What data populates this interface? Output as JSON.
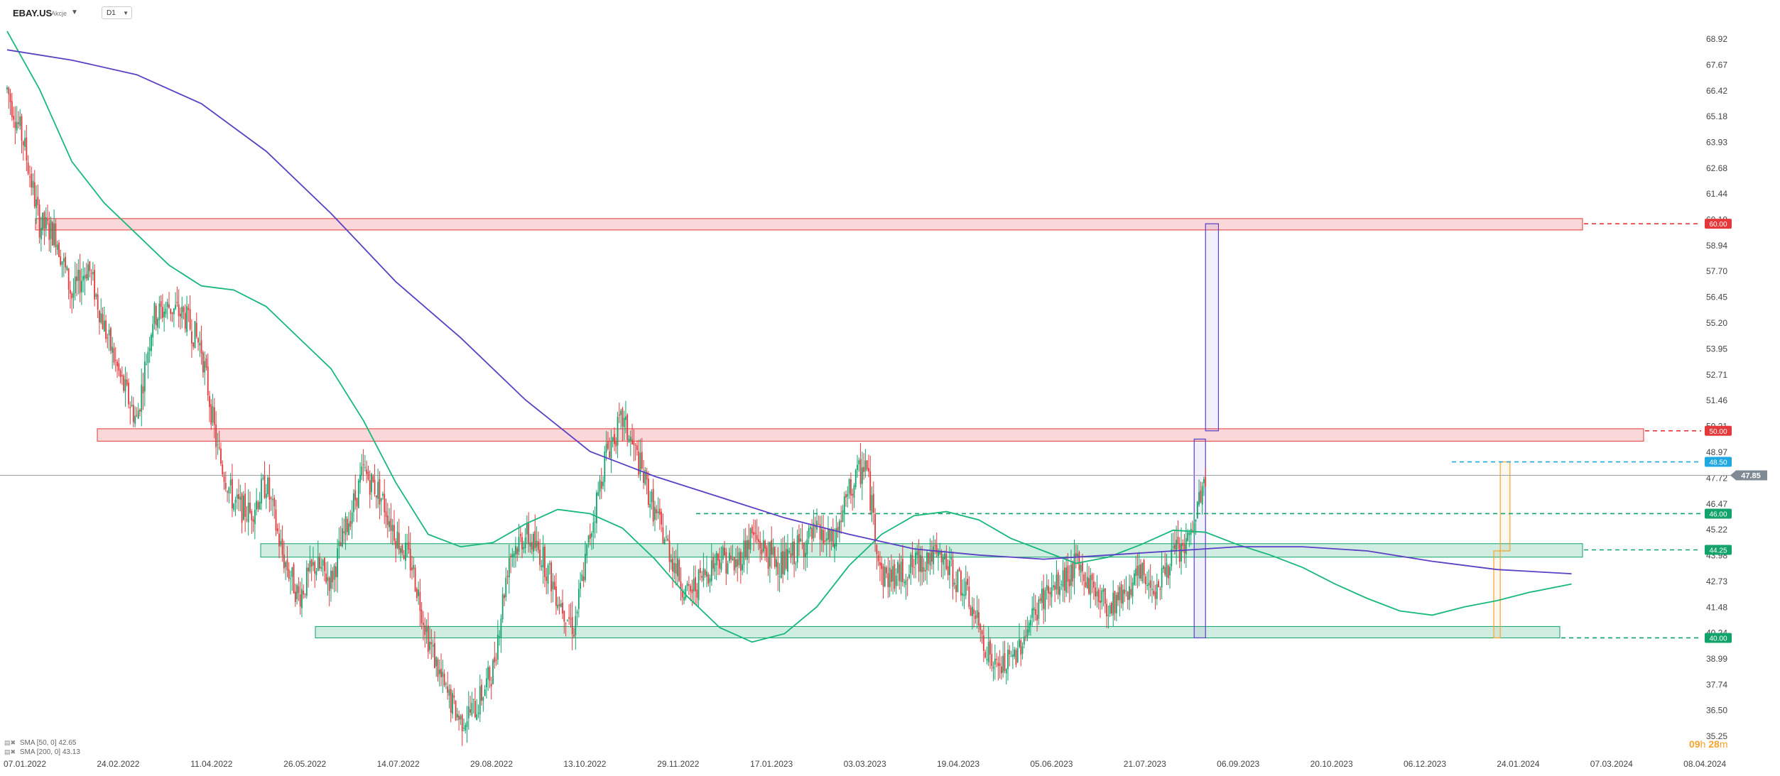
{
  "header": {
    "symbol": "EBAY.US",
    "instrument_type": "Akcje",
    "timeframe": "D1",
    "dropdown_icon": "caret-down-icon"
  },
  "countdown": {
    "hours": "09",
    "hours_unit": "h",
    "minutes": "28",
    "minutes_unit": "m"
  },
  "legend": [
    {
      "label": "SMA [50, 0]",
      "value": "42.65",
      "color": "#18b87a"
    },
    {
      "label": "SMA [200, 0]",
      "value": "43.13",
      "color": "#5b3fc4"
    }
  ],
  "chart_data": {
    "type": "candlestick",
    "instrument": "EBAY.US",
    "timeframe": "D1",
    "y_ticks": [
      "68.92",
      "67.67",
      "66.42",
      "65.18",
      "63.93",
      "62.68",
      "61.44",
      "60.19",
      "58.94",
      "57.70",
      "56.45",
      "55.20",
      "53.95",
      "52.71",
      "51.46",
      "50.21",
      "48.97",
      "47.72",
      "46.47",
      "45.22",
      "43.98",
      "42.73",
      "41.48",
      "40.24",
      "38.99",
      "37.74",
      "36.50",
      "35.25"
    ],
    "x_ticks": [
      "07.01.2022",
      "24.02.2022",
      "11.04.2022",
      "26.05.2022",
      "14.07.2022",
      "29.08.2022",
      "13.10.2022",
      "29.11.2022",
      "17.01.2023",
      "03.03.2023",
      "19.04.2023",
      "05.06.2023",
      "21.07.2023",
      "06.09.2023",
      "20.10.2023",
      "06.12.2023",
      "24.01.2024",
      "07.03.2024",
      "08.04.2024"
    ],
    "ylim": [
      35.25,
      68.92
    ],
    "last_price": {
      "value": 47.85,
      "label": "47.85",
      "color": "#808a94"
    },
    "levels": [
      {
        "label": "60.00",
        "value": 60.0,
        "color": "#e5383b",
        "style": "dashed"
      },
      {
        "label": "50.00",
        "value": 50.0,
        "color": "#e5383b",
        "style": "dashed"
      },
      {
        "label": "48.50",
        "value": 48.5,
        "color": "#1fa8e0",
        "style": "dashed"
      },
      {
        "label": "46.00",
        "value": 46.0,
        "color": "#12a36b",
        "style": "dashed"
      },
      {
        "label": "44.25",
        "value": 44.25,
        "color": "#12a36b",
        "style": "dashed"
      },
      {
        "label": "40.00",
        "value": 40.0,
        "color": "#12a36b",
        "style": "dashed"
      }
    ],
    "zones": [
      {
        "name": "resistance-zone-60",
        "from": 59.7,
        "to": 60.25,
        "color": "#e5383b",
        "x_start": "18.01.2022",
        "x_end": "17.02.2024"
      },
      {
        "name": "resistance-zone-50",
        "from": 49.5,
        "to": 50.1,
        "color": "#e5383b",
        "x_start": "24.02.2022",
        "x_end": "21.02.2024"
      },
      {
        "name": "support-zone-44",
        "from": 43.9,
        "to": 44.55,
        "color": "#12a36b",
        "x_start": "04.06.2022",
        "x_end": "15.02.2024"
      },
      {
        "name": "support-zone-40",
        "from": 40.0,
        "to": 40.55,
        "color": "#12a36b",
        "x_start": "30.06.2022",
        "x_end": "12.02.2024"
      }
    ],
    "series": [
      {
        "name": "SMA [50, 0]",
        "color": "#18b87a",
        "points": [
          [
            0,
            69.3
          ],
          [
            20,
            66.5
          ],
          [
            40,
            63
          ],
          [
            60,
            61
          ],
          [
            80,
            59.5
          ],
          [
            100,
            58
          ],
          [
            120,
            57
          ],
          [
            140,
            56.8
          ],
          [
            160,
            56
          ],
          [
            180,
            54.5
          ],
          [
            200,
            53
          ],
          [
            220,
            50.5
          ],
          [
            240,
            47.5
          ],
          [
            260,
            45
          ],
          [
            280,
            44.4
          ],
          [
            300,
            44.6
          ],
          [
            320,
            45.5
          ],
          [
            340,
            46.2
          ],
          [
            360,
            46
          ],
          [
            380,
            45.3
          ],
          [
            400,
            43.8
          ],
          [
            420,
            42
          ],
          [
            440,
            40.5
          ],
          [
            460,
            39.8
          ],
          [
            480,
            40.2
          ],
          [
            500,
            41.5
          ],
          [
            520,
            43.5
          ],
          [
            540,
            45
          ],
          [
            560,
            45.9
          ],
          [
            580,
            46.1
          ],
          [
            600,
            45.7
          ],
          [
            620,
            44.8
          ],
          [
            640,
            44.2
          ],
          [
            660,
            43.6
          ],
          [
            680,
            43.9
          ],
          [
            700,
            44.5
          ],
          [
            720,
            45.2
          ],
          [
            740,
            45.1
          ],
          [
            760,
            44.5
          ],
          [
            780,
            44
          ],
          [
            800,
            43.4
          ],
          [
            820,
            42.6
          ],
          [
            840,
            41.9
          ],
          [
            860,
            41.3
          ],
          [
            880,
            41.1
          ],
          [
            900,
            41.5
          ],
          [
            920,
            41.8
          ],
          [
            940,
            42.2
          ],
          [
            966,
            42.6
          ]
        ]
      },
      {
        "name": "SMA [200, 0]",
        "color": "#5b3fc4",
        "points": [
          [
            0,
            68.4
          ],
          [
            40,
            67.9
          ],
          [
            80,
            67.2
          ],
          [
            120,
            65.8
          ],
          [
            160,
            63.5
          ],
          [
            200,
            60.5
          ],
          [
            240,
            57.2
          ],
          [
            280,
            54.5
          ],
          [
            320,
            51.5
          ],
          [
            360,
            49
          ],
          [
            400,
            47.8
          ],
          [
            440,
            46.8
          ],
          [
            480,
            45.8
          ],
          [
            520,
            45
          ],
          [
            560,
            44.3
          ],
          [
            600,
            44
          ],
          [
            640,
            43.8
          ],
          [
            680,
            44
          ],
          [
            720,
            44.2
          ],
          [
            760,
            44.4
          ],
          [
            800,
            44.4
          ],
          [
            840,
            44.2
          ],
          [
            880,
            43.7
          ],
          [
            920,
            43.3
          ],
          [
            966,
            43.1
          ]
        ]
      }
    ],
    "ohlc": "generated-from-trend",
    "trend_anchors": [
      [
        0,
        66.5
      ],
      [
        10,
        64
      ],
      [
        20,
        60
      ],
      [
        30,
        59.5
      ],
      [
        40,
        56.5
      ],
      [
        50,
        58
      ],
      [
        60,
        55
      ],
      [
        70,
        52.5
      ],
      [
        80,
        50.5
      ],
      [
        90,
        55.5
      ],
      [
        100,
        56
      ],
      [
        110,
        55.5
      ],
      [
        120,
        54
      ],
      [
        130,
        49
      ],
      [
        140,
        46.5
      ],
      [
        150,
        46
      ],
      [
        160,
        47.5
      ],
      [
        170,
        44
      ],
      [
        180,
        42
      ],
      [
        190,
        43.5
      ],
      [
        200,
        42.8
      ],
      [
        210,
        45.5
      ],
      [
        220,
        48
      ],
      [
        230,
        47
      ],
      [
        240,
        45
      ],
      [
        250,
        43.5
      ],
      [
        260,
        40
      ],
      [
        270,
        37.5
      ],
      [
        280,
        36
      ],
      [
        290,
        36.7
      ],
      [
        300,
        38.5
      ],
      [
        310,
        44
      ],
      [
        320,
        45
      ],
      [
        330,
        44
      ],
      [
        340,
        42
      ],
      [
        350,
        40.5
      ],
      [
        360,
        45
      ],
      [
        370,
        49
      ],
      [
        380,
        50.5
      ],
      [
        390,
        48.5
      ],
      [
        400,
        46
      ],
      [
        410,
        44
      ],
      [
        420,
        42
      ],
      [
        430,
        43
      ],
      [
        440,
        44
      ],
      [
        450,
        43.5
      ],
      [
        460,
        45
      ],
      [
        470,
        44
      ],
      [
        480,
        43.5
      ],
      [
        490,
        44.5
      ],
      [
        500,
        45
      ],
      [
        510,
        44.5
      ],
      [
        520,
        47
      ],
      [
        530,
        48.5
      ],
      [
        540,
        43
      ],
      [
        550,
        43
      ],
      [
        560,
        43.5
      ],
      [
        570,
        44
      ],
      [
        580,
        43.5
      ],
      [
        590,
        42.5
      ],
      [
        600,
        40.5
      ],
      [
        610,
        38.5
      ],
      [
        620,
        38.8
      ],
      [
        630,
        40.5
      ],
      [
        640,
        42
      ],
      [
        650,
        42.5
      ],
      [
        660,
        43.5
      ],
      [
        670,
        42.5
      ],
      [
        680,
        41.5
      ],
      [
        690,
        42.3
      ],
      [
        700,
        43
      ],
      [
        710,
        42.5
      ],
      [
        720,
        44
      ],
      [
        730,
        44.6
      ],
      [
        736,
        46.5
      ],
      [
        740,
        47.7
      ]
    ],
    "markers": [
      {
        "name": "blue-range-box",
        "x_start": 733,
        "x_end": 740,
        "from": 40.0,
        "to": 49.6,
        "color": "#5b3fc4"
      },
      {
        "name": "blue-projection-box",
        "x_start": 740,
        "x_end": 748,
        "from": 50.0,
        "to": 60.0,
        "color": "#5b3fc4"
      },
      {
        "name": "orange-range-box-1",
        "x_start": 918,
        "x_end": 922,
        "from": 40.0,
        "to": 44.2,
        "color": "#f7a32d"
      },
      {
        "name": "orange-range-box-2",
        "x_start": 922,
        "x_end": 928,
        "from": 44.2,
        "to": 48.5,
        "color": "#f7a32d"
      }
    ]
  }
}
